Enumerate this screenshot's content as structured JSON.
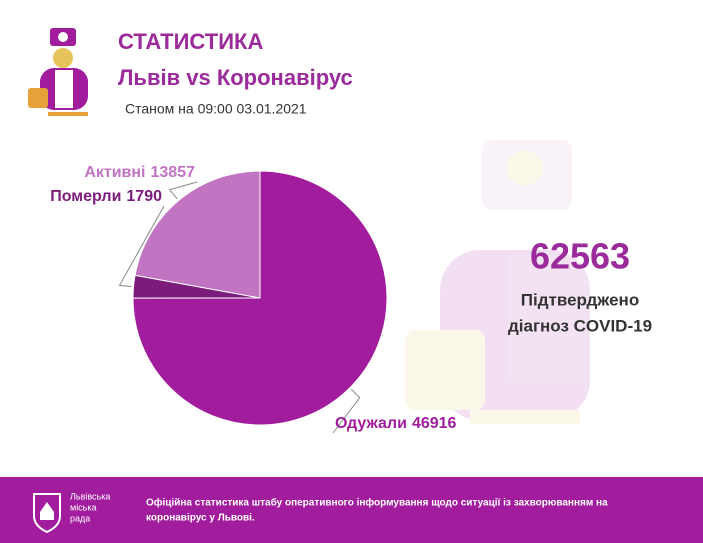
{
  "header": {
    "title": "СТАТИСТИКА",
    "subtitle": "Львів vs Коронавірус",
    "date": "Станом на 09:00 03.01.2021"
  },
  "chart_data": {
    "type": "pie",
    "categories": [
      "Активні",
      "Померли",
      "Одужали"
    ],
    "values": [
      13857,
      1790,
      46916
    ],
    "colors": [
      "#c174c2",
      "#7b1b7c",
      "#a21d9e"
    ]
  },
  "total": {
    "value": 62563,
    "label_lines": [
      "Підтверджено",
      "діагноз COVID-19"
    ]
  },
  "footer": {
    "logo_lines": [
      "Львівська",
      "міська",
      "рада"
    ],
    "text_lines": [
      "Офіційна статистика штабу оперативного інформування щодо ситуації із захворюванням на",
      "коронавірус у Львові."
    ]
  }
}
